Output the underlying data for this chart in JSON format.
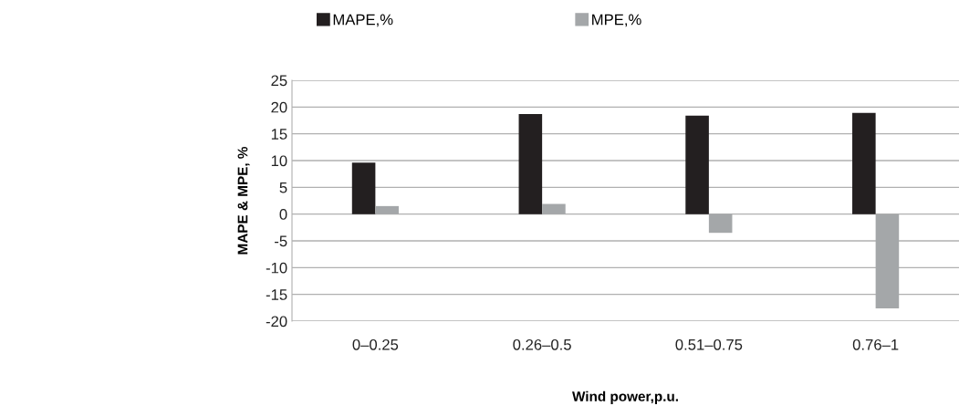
{
  "chart_data": {
    "type": "bar",
    "xlabel": "Wind power,p.u.",
    "ylabel": "MAPE & MPE, %",
    "categories": [
      "0–0.25",
      "0.26–0.5",
      "0.51–0.75",
      "0.76–1"
    ],
    "series": [
      {
        "name": "MAPE,%",
        "color": "#231f20",
        "values": [
          9.6,
          18.7,
          18.4,
          18.9
        ]
      },
      {
        "name": "MPE,%",
        "color": "#a4a7a9",
        "values": [
          1.5,
          1.9,
          -3.5,
          -17.6
        ]
      }
    ],
    "ylim": [
      -20,
      25
    ],
    "yticks": [
      -20,
      -15,
      -10,
      -5,
      0,
      5,
      10,
      15,
      20,
      25
    ],
    "grid": "y",
    "legend": "top"
  }
}
